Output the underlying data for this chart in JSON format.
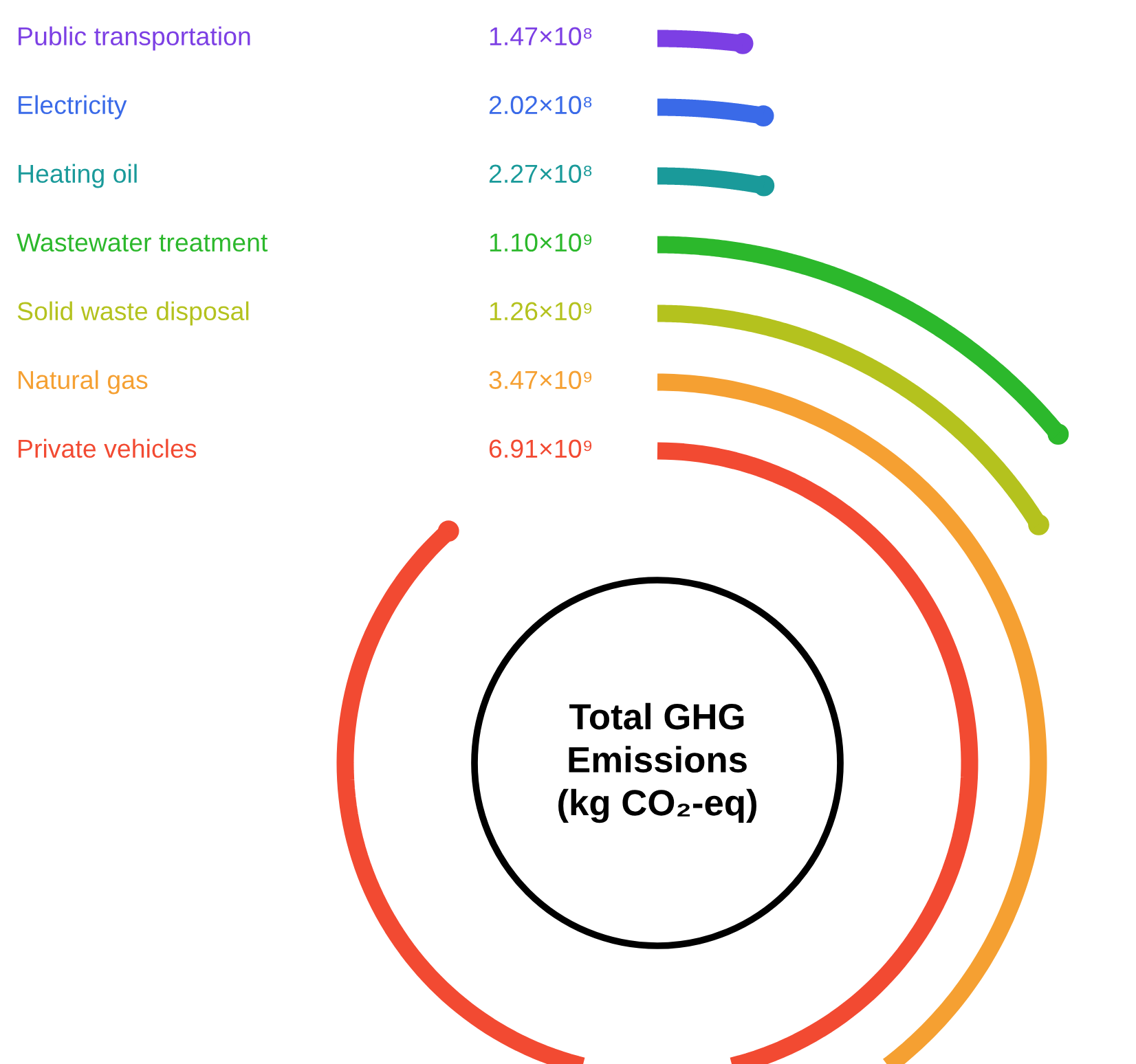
{
  "chart_data": {
    "type": "other",
    "title": "Total GHG\nEmissions\n(kg CO₂-eq)",
    "categories": [
      "Public transportation",
      "Electricity",
      "Heating oil",
      "Wastewater treatment",
      "Solid waste disposal",
      "Natural gas",
      "Private vehicles"
    ],
    "values": [
      147000000,
      202000000,
      227000000,
      1100000000,
      1260000000,
      3470000000,
      6910000000
    ],
    "value_labels": [
      "1.47×10⁸",
      "2.02×10⁸",
      "2.27×10⁸",
      "1.10×10⁹",
      "1.26×10⁹",
      "3.47×10⁹",
      "6.91×10⁹"
    ],
    "colors": [
      "#7c3fe4",
      "#3a6ae8",
      "#1a9a9a",
      "#2cb82c",
      "#b4c21e",
      "#f5a032",
      "#f24a32"
    ]
  }
}
